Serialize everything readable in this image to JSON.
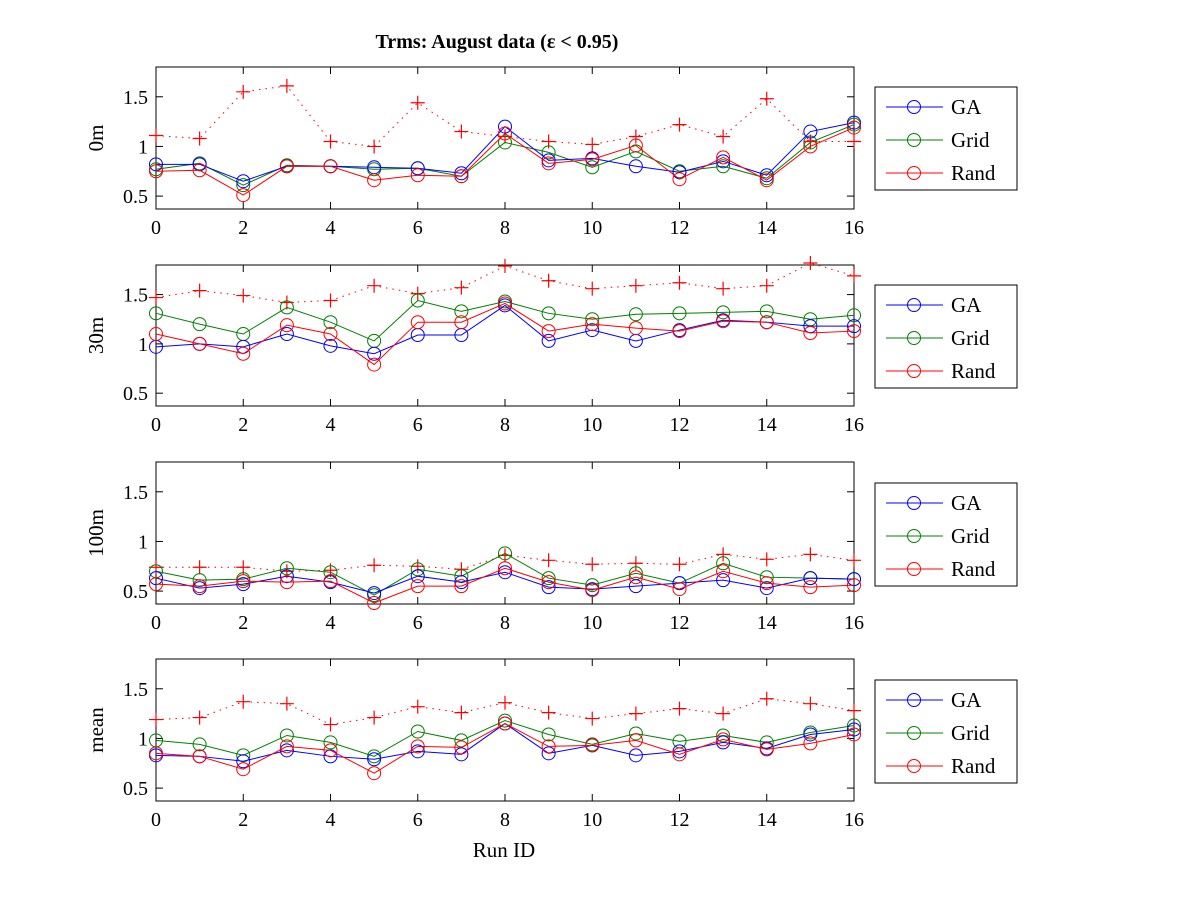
{
  "chart_data": {
    "type": "line",
    "title": "Trms:   August data   (ε < 0.95)",
    "xlabel": "Run ID",
    "x": [
      0,
      1,
      2,
      3,
      4,
      5,
      6,
      7,
      8,
      9,
      10,
      11,
      12,
      13,
      14,
      15,
      16
    ],
    "xlim": [
      0,
      16
    ],
    "xticks": [
      0,
      2,
      4,
      6,
      8,
      10,
      12,
      14,
      16
    ],
    "ylim": [
      0.37,
      1.8
    ],
    "yticks": [
      0.5,
      1,
      1.5
    ],
    "ytick_labels": [
      "0.5",
      "1",
      "1.5"
    ],
    "grid": false,
    "legend_placement": "right-outside",
    "series_styles": {
      "GA": {
        "color": "#0000ff",
        "marker": "circle",
        "line": "solid"
      },
      "Grid": {
        "color": "#008000",
        "marker": "circle",
        "line": "solid"
      },
      "Rand": {
        "color": "#ff0000",
        "marker": "circle",
        "line": "solid"
      },
      "plus": {
        "color": "#ff0000",
        "marker": "plus",
        "line": "dotted"
      }
    },
    "panels": [
      {
        "ylabel": "0m",
        "series": [
          {
            "name": "GA",
            "values": [
              0.82,
              0.82,
              0.65,
              0.8,
              0.8,
              0.79,
              0.78,
              0.73,
              1.2,
              0.86,
              0.88,
              0.8,
              0.74,
              0.85,
              0.71,
              1.15,
              1.24
            ]
          },
          {
            "name": "Grid",
            "values": [
              0.77,
              0.83,
              0.61,
              0.81,
              0.8,
              0.77,
              0.78,
              0.7,
              1.04,
              0.94,
              0.79,
              0.95,
              0.75,
              0.8,
              0.68,
              1.04,
              1.22
            ]
          },
          {
            "name": "Rand",
            "values": [
              0.75,
              0.76,
              0.51,
              0.8,
              0.8,
              0.66,
              0.71,
              0.7,
              1.13,
              0.83,
              0.87,
              1.01,
              0.67,
              0.89,
              0.66,
              1.0,
              1.19
            ]
          },
          {
            "name": "",
            "marker": "plus",
            "values": [
              1.11,
              1.08,
              1.55,
              1.61,
              1.05,
              1.0,
              1.44,
              1.15,
              1.1,
              1.05,
              1.02,
              1.1,
              1.22,
              1.1,
              1.48,
              1.05,
              1.05
            ]
          }
        ]
      },
      {
        "ylabel": "30m",
        "series": [
          {
            "name": "GA",
            "values": [
              0.97,
              1.0,
              0.97,
              1.1,
              0.98,
              0.9,
              1.09,
              1.09,
              1.39,
              1.03,
              1.14,
              1.03,
              1.14,
              1.24,
              1.22,
              1.18,
              1.18
            ]
          },
          {
            "name": "Grid",
            "values": [
              1.31,
              1.2,
              1.1,
              1.37,
              1.22,
              1.03,
              1.44,
              1.33,
              1.43,
              1.31,
              1.25,
              1.3,
              1.31,
              1.32,
              1.33,
              1.25,
              1.29
            ]
          },
          {
            "name": "Rand",
            "values": [
              1.1,
              1.0,
              0.9,
              1.19,
              1.1,
              0.79,
              1.22,
              1.22,
              1.41,
              1.13,
              1.2,
              1.16,
              1.13,
              1.23,
              1.22,
              1.11,
              1.13
            ]
          },
          {
            "name": "",
            "marker": "plus",
            "values": [
              1.47,
              1.54,
              1.49,
              1.42,
              1.44,
              1.59,
              1.51,
              1.57,
              1.79,
              1.64,
              1.56,
              1.59,
              1.62,
              1.56,
              1.59,
              1.82,
              1.69
            ]
          }
        ]
      },
      {
        "ylabel": "100m",
        "series": [
          {
            "name": "GA",
            "values": [
              0.63,
              0.53,
              0.57,
              0.65,
              0.59,
              0.48,
              0.65,
              0.59,
              0.69,
              0.54,
              0.52,
              0.55,
              0.58,
              0.61,
              0.53,
              0.63,
              0.62
            ]
          },
          {
            "name": "Grid",
            "values": [
              0.7,
              0.61,
              0.62,
              0.73,
              0.69,
              0.46,
              0.72,
              0.65,
              0.88,
              0.63,
              0.56,
              0.68,
              0.58,
              0.78,
              0.64,
              0.63,
              0.62
            ]
          },
          {
            "name": "Rand",
            "values": [
              0.57,
              0.55,
              0.6,
              0.59,
              0.6,
              0.38,
              0.55,
              0.55,
              0.73,
              0.59,
              0.51,
              0.64,
              0.52,
              0.7,
              0.58,
              0.54,
              0.56
            ]
          },
          {
            "name": "",
            "marker": "plus",
            "values": [
              0.74,
              0.74,
              0.74,
              0.7,
              0.71,
              0.76,
              0.75,
              0.72,
              0.86,
              0.81,
              0.77,
              0.78,
              0.77,
              0.87,
              0.82,
              0.87,
              0.81
            ]
          }
        ]
      },
      {
        "ylabel": "mean",
        "series": [
          {
            "name": "GA",
            "values": [
              0.83,
              0.82,
              0.77,
              0.88,
              0.82,
              0.79,
              0.87,
              0.84,
              1.15,
              0.85,
              0.93,
              0.83,
              0.87,
              0.96,
              0.9,
              1.04,
              1.09
            ]
          },
          {
            "name": "Grid",
            "values": [
              0.98,
              0.94,
              0.83,
              1.03,
              0.96,
              0.82,
              1.07,
              0.98,
              1.18,
              1.04,
              0.94,
              1.05,
              0.97,
              1.03,
              0.96,
              1.06,
              1.13
            ]
          },
          {
            "name": "Rand",
            "values": [
              0.85,
              0.82,
              0.69,
              0.92,
              0.88,
              0.65,
              0.92,
              0.91,
              1.15,
              0.92,
              0.93,
              0.98,
              0.84,
              0.99,
              0.89,
              0.95,
              1.04
            ]
          },
          {
            "name": "",
            "marker": "plus",
            "values": [
              1.19,
              1.21,
              1.37,
              1.35,
              1.14,
              1.21,
              1.32,
              1.26,
              1.36,
              1.26,
              1.2,
              1.25,
              1.3,
              1.25,
              1.4,
              1.35,
              1.28
            ]
          }
        ]
      }
    ],
    "legend": [
      "GA",
      "Grid",
      "Rand"
    ]
  }
}
